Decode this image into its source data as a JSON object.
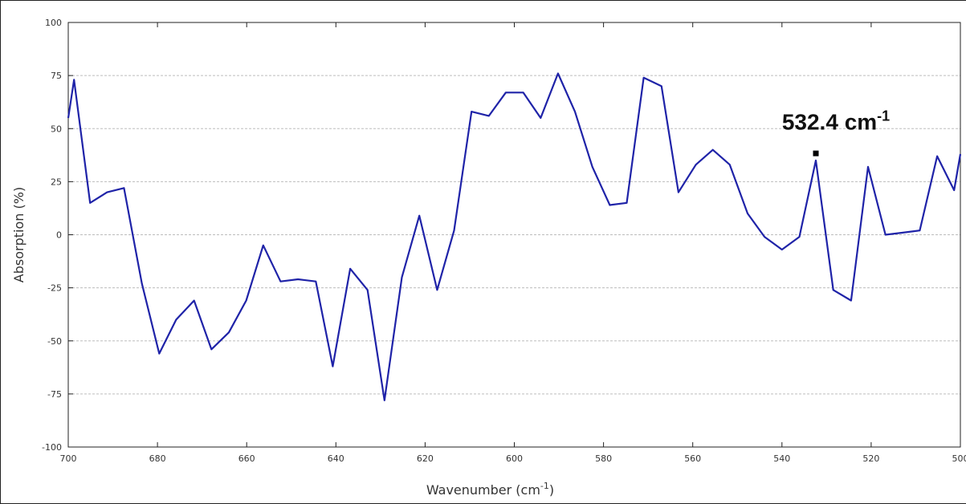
{
  "chart_data": {
    "type": "line",
    "title": "",
    "xlabel": "Wavenumber (cm",
    "xlabel_sup": "-1",
    "xlabel_close": ")",
    "ylabel": "Absorption (%)",
    "xlim": [
      700,
      500
    ],
    "ylim": [
      -100,
      100
    ],
    "x_reversed": true,
    "xticks": [
      "700",
      "680",
      "660",
      "640",
      "620",
      "600",
      "580",
      "560",
      "540",
      "520",
      "500"
    ],
    "yticks": [
      "100",
      "75",
      "50",
      "25",
      "0",
      "-25",
      "-50",
      "-75",
      "-100"
    ],
    "grid": true,
    "series_color": "#1f23a8",
    "series": [
      {
        "x": [
          700.0,
          698.7,
          695.1,
          691.3,
          687.5,
          683.5,
          679.6,
          675.8,
          671.8,
          667.9,
          664.0,
          660.1,
          656.3,
          652.4,
          648.5,
          644.5,
          640.7,
          636.8,
          632.9,
          629.1,
          625.2,
          621.3,
          617.3,
          613.5,
          609.6,
          605.7,
          601.9,
          598.0,
          594.1,
          590.2,
          586.4,
          582.5,
          578.6,
          574.8,
          571.0,
          567.0,
          563.2,
          559.3,
          555.5,
          551.7,
          547.7,
          543.9,
          540.0,
          536.1,
          532.4,
          528.5,
          524.5,
          520.7,
          516.8,
          512.9,
          509.1,
          505.2,
          501.4,
          500.0
        ],
        "y": [
          55,
          73,
          15,
          20,
          22,
          -23,
          -56,
          -40,
          -31,
          -54,
          -46,
          -31,
          -5,
          -22,
          -21,
          -22,
          -62,
          -16,
          -26,
          -78,
          -20,
          9,
          -26,
          2,
          58,
          56,
          67,
          67,
          55,
          76,
          58,
          32,
          14,
          15,
          74,
          70,
          20,
          33,
          40,
          33,
          10,
          -1,
          -7,
          -1,
          35,
          -26,
          -31,
          32,
          0,
          1,
          2,
          37,
          21,
          38
        ]
      }
    ],
    "annotation": {
      "text": "532.4 cm",
      "sup": "-1",
      "x": 532.4,
      "y": 37
    }
  }
}
